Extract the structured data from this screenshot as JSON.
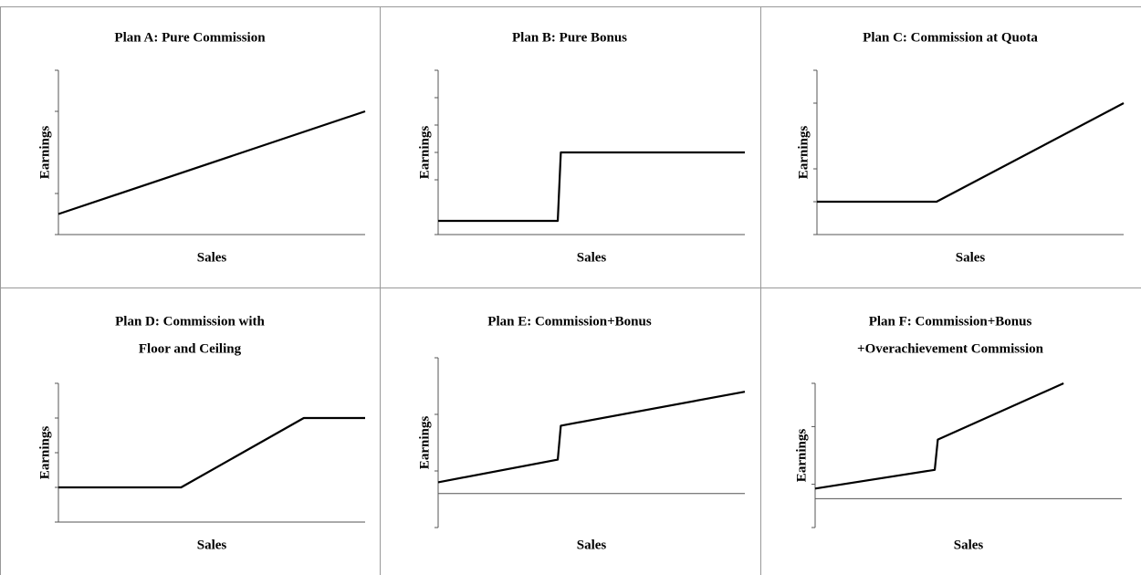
{
  "chart_data": [
    {
      "type": "line",
      "title": "Plan A: Pure Commission",
      "xlabel": "Sales",
      "ylabel": "Earnings",
      "color": "#000000",
      "x": [
        0,
        10
      ],
      "y": [
        1,
        6
      ],
      "xlim": [
        0,
        10
      ],
      "ylim": [
        0,
        8
      ],
      "yticks": [
        0,
        2,
        6,
        8
      ]
    },
    {
      "type": "line",
      "title": "Plan B: Pure Bonus",
      "xlabel": "Sales",
      "ylabel": "Earnings",
      "color": "#000000",
      "x": [
        0,
        3.9,
        4.0,
        10
      ],
      "y": [
        0.5,
        0.5,
        3,
        3
      ],
      "xlim": [
        0,
        10
      ],
      "ylim": [
        0,
        6
      ],
      "yticks": [
        0,
        2,
        3,
        4,
        5,
        6
      ]
    },
    {
      "type": "line",
      "title": "Plan C: Commission at Quota",
      "xlabel": "Sales",
      "ylabel": "Earnings",
      "color": "#000000",
      "x": [
        0,
        3.9,
        10
      ],
      "y": [
        1,
        1,
        4
      ],
      "xlim": [
        0,
        10
      ],
      "ylim": [
        0,
        5
      ],
      "yticks": [
        0,
        1,
        2,
        4,
        5
      ]
    },
    {
      "type": "line",
      "title": [
        "Plan D: Commission with",
        "Floor and Ceiling"
      ],
      "xlabel": "Sales",
      "ylabel": "Earnings",
      "color": "#000000",
      "x": [
        0,
        4.0,
        8.0,
        10
      ],
      "y": [
        1,
        1,
        3,
        3
      ],
      "xlim": [
        0,
        10
      ],
      "ylim": [
        0,
        4
      ],
      "yticks": [
        0,
        1,
        2,
        3,
        4
      ]
    },
    {
      "type": "line",
      "title": "Plan E: Commission+Bonus",
      "xlabel": "Sales",
      "ylabel": "Earnings",
      "color": "#000000",
      "x": [
        0,
        3.9,
        4.0,
        10
      ],
      "y": [
        0.5,
        1.5,
        3,
        4.5
      ],
      "xlim": [
        0,
        10
      ],
      "ylim": [
        -1.5,
        6
      ],
      "yticks": [
        -1.5,
        1,
        3.5,
        6
      ]
    },
    {
      "type": "line",
      "title": [
        "Plan F: Commission+Bonus",
        "+Overachievement Commission"
      ],
      "xlabel": "Sales",
      "ylabel": "Earnings",
      "color": "#000000",
      "x": [
        0,
        3.9,
        4.0,
        8.1
      ],
      "y": [
        0.7,
        2,
        4.1,
        8
      ],
      "xlim": [
        0,
        10
      ],
      "ylim": [
        -2,
        8
      ],
      "yticks": [
        -2,
        1,
        5,
        8
      ]
    }
  ]
}
